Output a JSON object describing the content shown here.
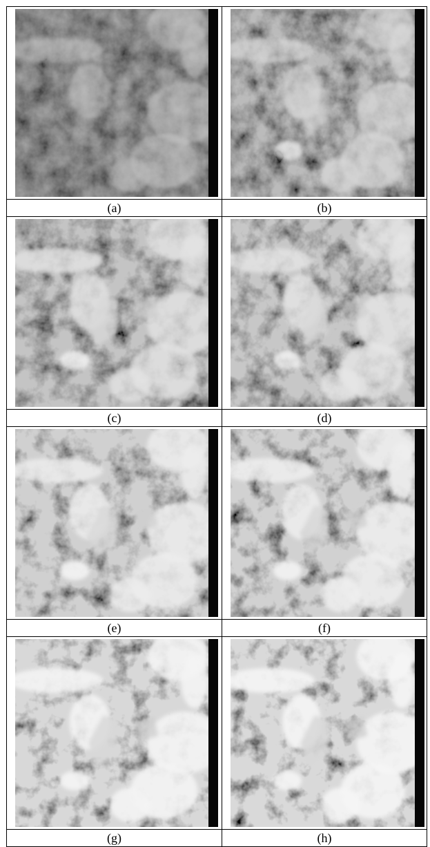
{
  "figure": {
    "panels": [
      {
        "id": "a",
        "caption": "(a)",
        "tone": 0.0
      },
      {
        "id": "b",
        "caption": "(b)",
        "tone": 0.35
      },
      {
        "id": "c",
        "caption": "(c)",
        "tone": 0.55
      },
      {
        "id": "d",
        "caption": "(d)",
        "tone": 0.6
      },
      {
        "id": "e",
        "caption": "(e)",
        "tone": 0.75
      },
      {
        "id": "f",
        "caption": "(f)",
        "tone": 0.78
      },
      {
        "id": "g",
        "caption": "(g)",
        "tone": 0.9
      },
      {
        "id": "h",
        "caption": "(h)",
        "tone": 0.92
      }
    ]
  }
}
